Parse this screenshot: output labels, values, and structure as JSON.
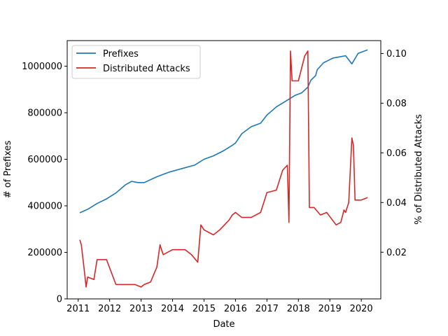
{
  "chart_data": {
    "type": "line",
    "title": "",
    "xlabel": "Date",
    "ylabel_left": "# of Prefixes",
    "ylabel_right": "% of Distributed Attacks",
    "xlim": [
      2010.65,
      2020.62
    ],
    "ylim_left": [
      0,
      1110000
    ],
    "ylim_right": [
      0.0012,
      0.1052
    ],
    "x_ticks": [
      2011,
      2012,
      2013,
      2014,
      2015,
      2016,
      2017,
      2018,
      2019,
      2020
    ],
    "x_tick_labels": [
      "2011",
      "2012",
      "2013",
      "2014",
      "2015",
      "2016",
      "2017",
      "2018",
      "2019",
      "2020"
    ],
    "y_left_ticks": [
      0,
      200000,
      400000,
      600000,
      800000,
      1000000
    ],
    "y_left_tick_labels": [
      "0",
      "200000",
      "400000",
      "600000",
      "800000",
      "1000000"
    ],
    "y_right_ticks": [
      0.02,
      0.04,
      0.06,
      0.08,
      0.1
    ],
    "y_right_tick_labels": [
      "0.02",
      "0.04",
      "0.06",
      "0.08",
      "0.10"
    ],
    "grid": false,
    "legend_position": "upper-left",
    "series": [
      {
        "name": "Prefixes",
        "axis": "left",
        "color": "#1f77b4",
        "x": [
          2011.05,
          2011.3,
          2011.6,
          2011.9,
          2012.2,
          2012.5,
          2012.7,
          2012.9,
          2013.1,
          2013.5,
          2013.9,
          2014.3,
          2014.7,
          2015.0,
          2015.3,
          2015.6,
          2015.9,
          2016.0,
          2016.2,
          2016.5,
          2016.8,
          2017.0,
          2017.3,
          2017.6,
          2017.9,
          2018.1,
          2018.3,
          2018.4,
          2018.55,
          2018.6,
          2018.8,
          2018.95,
          2019.1,
          2019.3,
          2019.5,
          2019.7,
          2019.9,
          2020.2
        ],
        "values": [
          370000,
          385000,
          410000,
          430000,
          455000,
          490000,
          505000,
          500000,
          500000,
          525000,
          545000,
          560000,
          575000,
          600000,
          615000,
          635000,
          660000,
          670000,
          710000,
          740000,
          755000,
          790000,
          825000,
          850000,
          875000,
          885000,
          910000,
          940000,
          960000,
          985000,
          1015000,
          1025000,
          1035000,
          1040000,
          1045000,
          1010000,
          1055000,
          1070000
        ]
      },
      {
        "name": "Distributed Attacks",
        "axis": "right",
        "color": "#d62728",
        "x": [
          2011.05,
          2011.1,
          2011.2,
          2011.25,
          2011.3,
          2011.5,
          2011.6,
          2011.9,
          2012.2,
          2012.5,
          2012.8,
          2013.0,
          2013.1,
          2013.3,
          2013.5,
          2013.6,
          2013.7,
          2014.0,
          2014.4,
          2014.6,
          2014.8,
          2014.9,
          2015.0,
          2015.3,
          2015.5,
          2015.8,
          2015.9,
          2016.0,
          2016.2,
          2016.5,
          2016.8,
          2016.95,
          2017.0,
          2017.3,
          2017.5,
          2017.65,
          2017.7,
          2017.75,
          2017.8,
          2018.0,
          2018.2,
          2018.3,
          2018.35,
          2018.5,
          2018.7,
          2018.9,
          2019.2,
          2019.35,
          2019.45,
          2019.5,
          2019.6,
          2019.7,
          2019.75,
          2019.8,
          2019.9,
          2020.0,
          2020.2
        ],
        "values": [
          0.025,
          0.023,
          0.012,
          0.006,
          0.01,
          0.009,
          0.017,
          0.017,
          0.007,
          0.007,
          0.007,
          0.006,
          0.007,
          0.008,
          0.014,
          0.023,
          0.019,
          0.021,
          0.021,
          0.019,
          0.016,
          0.031,
          0.029,
          0.027,
          0.029,
          0.033,
          0.035,
          0.036,
          0.034,
          0.034,
          0.036,
          0.042,
          0.044,
          0.045,
          0.053,
          0.055,
          0.032,
          0.101,
          0.089,
          0.089,
          0.099,
          0.101,
          0.038,
          0.038,
          0.035,
          0.036,
          0.031,
          0.032,
          0.037,
          0.036,
          0.04,
          0.066,
          0.063,
          0.041,
          0.041,
          0.041,
          0.042
        ]
      }
    ]
  }
}
